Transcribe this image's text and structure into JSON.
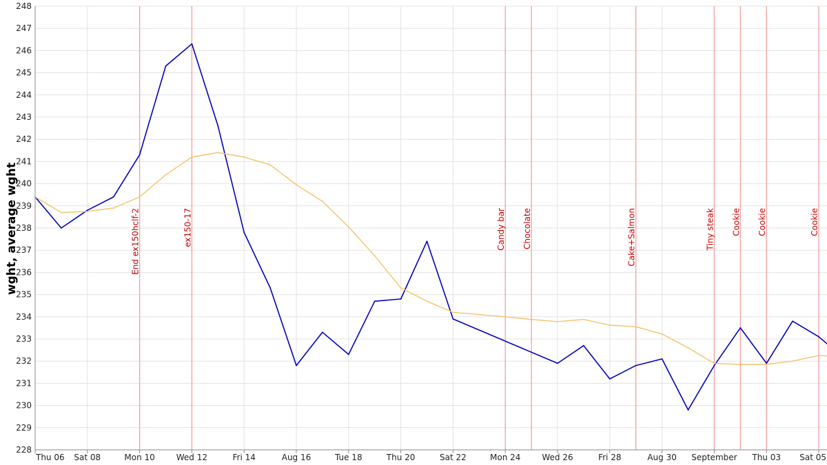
{
  "chart_data": {
    "type": "line",
    "title": "",
    "xlabel": "",
    "ylabel": "wght, average wght",
    "ylim": [
      228,
      248
    ],
    "yticks": [
      228,
      229,
      230,
      231,
      232,
      233,
      234,
      235,
      236,
      237,
      238,
      239,
      240,
      241,
      242,
      243,
      244,
      245,
      246,
      247,
      248
    ],
    "grid": true,
    "legend": "none",
    "x_dates": [
      "Aug 06",
      "Aug 07",
      "Aug 08",
      "Aug 09",
      "Aug 10",
      "Aug 11",
      "Aug 12",
      "Aug 13",
      "Aug 14",
      "Aug 15",
      "Aug 16",
      "Aug 17",
      "Aug 18",
      "Aug 19",
      "Aug 20",
      "Aug 21",
      "Aug 22",
      "Aug 23",
      "Aug 24",
      "Aug 25",
      "Aug 26",
      "Aug 27",
      "Aug 28",
      "Aug 29",
      "Aug 30",
      "Aug 31",
      "Sep 01",
      "Sep 02",
      "Sep 03",
      "Sep 04",
      "Sep 05",
      "Sep 06"
    ],
    "x_tick_labels": [
      {
        "date": "Aug 06",
        "label": "Thu 06"
      },
      {
        "date": "Aug 08",
        "label": "Sat 08"
      },
      {
        "date": "Aug 10",
        "label": "Mon 10"
      },
      {
        "date": "Aug 12",
        "label": "Wed 12"
      },
      {
        "date": "Aug 14",
        "label": "Fri 14"
      },
      {
        "date": "Aug 16",
        "label": "Aug 16"
      },
      {
        "date": "Aug 18",
        "label": "Tue 18"
      },
      {
        "date": "Aug 20",
        "label": "Thu 20"
      },
      {
        "date": "Aug 22",
        "label": "Sat 22"
      },
      {
        "date": "Aug 24",
        "label": "Mon 24"
      },
      {
        "date": "Aug 26",
        "label": "Wed 26"
      },
      {
        "date": "Aug 28",
        "label": "Fri 28"
      },
      {
        "date": "Aug 30",
        "label": "Aug 30"
      },
      {
        "date": "Sep 01",
        "label": "September"
      },
      {
        "date": "Sep 03",
        "label": "Thu 03"
      },
      {
        "date": "Sep 05",
        "label": "Sat 05"
      }
    ],
    "series": [
      {
        "color": "#0000bb",
        "points": [
          {
            "x": "Aug 06",
            "y": 239.4
          },
          {
            "x": "Aug 07",
            "y": 238.0
          },
          {
            "x": "Aug 08",
            "y": 238.8
          },
          {
            "x": "Aug 09",
            "y": 239.4
          },
          {
            "x": "Aug 10",
            "y": 241.3
          },
          {
            "x": "Aug 11",
            "y": 245.3
          },
          {
            "x": "Aug 12",
            "y": 246.3
          },
          {
            "x": "Aug 13",
            "y": 242.6
          },
          {
            "x": "Aug 14",
            "y": 237.8
          },
          {
            "x": "Aug 15",
            "y": 235.3
          },
          {
            "x": "Aug 16",
            "y": 231.8
          },
          {
            "x": "Aug 17",
            "y": 233.3
          },
          {
            "x": "Aug 18",
            "y": 232.3
          },
          {
            "x": "Aug 19",
            "y": 234.7
          },
          {
            "x": "Aug 20",
            "y": 234.8
          },
          {
            "x": "Aug 21",
            "y": 237.4
          },
          {
            "x": "Aug 22",
            "y": 233.9
          },
          {
            "x": "Aug 26",
            "y": 231.9
          },
          {
            "x": "Aug 27",
            "y": 232.7
          },
          {
            "x": "Aug 28",
            "y": 231.2
          },
          {
            "x": "Aug 29",
            "y": 231.8
          },
          {
            "x": "Aug 30",
            "y": 232.1
          },
          {
            "x": "Aug 31",
            "y": 229.8
          },
          {
            "x": "Sep 01",
            "y": 231.8
          },
          {
            "x": "Sep 02",
            "y": 233.5
          },
          {
            "x": "Sep 03",
            "y": 231.9
          },
          {
            "x": "Sep 04",
            "y": 233.8
          },
          {
            "x": "Sep 05",
            "y": 233.1
          },
          {
            "x": "Sep 06",
            "y": 232.1
          }
        ]
      },
      {
        "color": "#f5c26b",
        "points": [
          {
            "x": "Aug 06",
            "y": 239.4
          },
          {
            "x": "Aug 07",
            "y": 238.7
          },
          {
            "x": "Aug 08",
            "y": 238.75
          },
          {
            "x": "Aug 09",
            "y": 238.9
          },
          {
            "x": "Aug 10",
            "y": 239.4
          },
          {
            "x": "Aug 11",
            "y": 240.4
          },
          {
            "x": "Aug 12",
            "y": 241.2
          },
          {
            "x": "Aug 13",
            "y": 241.4
          },
          {
            "x": "Aug 14",
            "y": 241.2
          },
          {
            "x": "Aug 15",
            "y": 240.85
          },
          {
            "x": "Aug 16",
            "y": 239.95
          },
          {
            "x": "Aug 17",
            "y": 239.2
          },
          {
            "x": "Aug 18",
            "y": 238.05
          },
          {
            "x": "Aug 19",
            "y": 236.75
          },
          {
            "x": "Aug 20",
            "y": 235.3
          },
          {
            "x": "Aug 21",
            "y": 234.7
          },
          {
            "x": "Aug 22",
            "y": 234.2
          },
          {
            "x": "Aug 23",
            "y": 234.1
          },
          {
            "x": "Aug 24",
            "y": 234.0
          },
          {
            "x": "Aug 25",
            "y": 233.88
          },
          {
            "x": "Aug 26",
            "y": 233.78
          },
          {
            "x": "Aug 27",
            "y": 233.88
          },
          {
            "x": "Aug 28",
            "y": 233.62
          },
          {
            "x": "Aug 29",
            "y": 233.55
          },
          {
            "x": "Aug 30",
            "y": 233.22
          },
          {
            "x": "Aug 31",
            "y": 232.6
          },
          {
            "x": "Sep 01",
            "y": 231.9
          },
          {
            "x": "Sep 02",
            "y": 231.85
          },
          {
            "x": "Sep 03",
            "y": 231.85
          },
          {
            "x": "Sep 04",
            "y": 232.0
          },
          {
            "x": "Sep 05",
            "y": 232.25
          },
          {
            "x": "Sep 06",
            "y": 232.2
          }
        ]
      }
    ],
    "events": [
      {
        "date": "Aug 10",
        "label": "End ex150hclf-2"
      },
      {
        "date": "Aug 12",
        "label": "ex150-17"
      },
      {
        "date": "Aug 24",
        "label": "Candy bar"
      },
      {
        "date": "Aug 25",
        "label": "Chocolate"
      },
      {
        "date": "Aug 29",
        "label": "Cake+Salmon"
      },
      {
        "date": "Sep 01",
        "label": "Tiny steak"
      },
      {
        "date": "Sep 02",
        "label": "Cookie"
      },
      {
        "date": "Sep 03",
        "label": "Cookie"
      },
      {
        "date": "Sep 05",
        "label": "Cookie"
      }
    ],
    "colors": {
      "grid": "#e3e3e3",
      "axis": "#888888",
      "event_line": "#f2a0a0",
      "event_text": "#cc0000"
    }
  }
}
